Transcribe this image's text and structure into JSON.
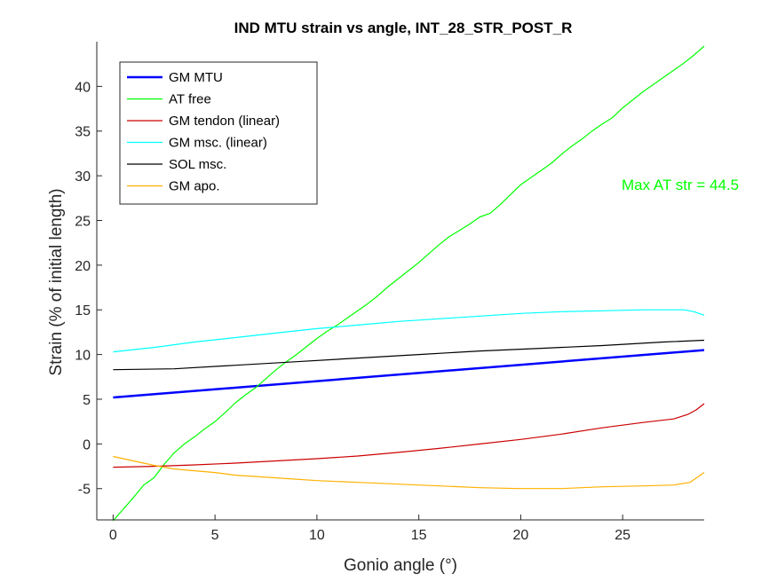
{
  "chart_data": {
    "type": "line",
    "title": "IND MTU strain vs angle, INT_28_STR_POST_R",
    "xlabel": "Gonio angle (°)",
    "ylabel": "Strain (% of initial length)",
    "xlim": [
      -0.8,
      29
    ],
    "ylim": [
      -8.5,
      45
    ],
    "xticks": [
      0,
      5,
      10,
      15,
      20,
      25
    ],
    "yticks": [
      -5,
      0,
      5,
      10,
      15,
      20,
      25,
      30,
      35,
      40
    ],
    "legend_position": "top-left",
    "grid": false,
    "annotation": {
      "text": "Max AT str = 44.5",
      "color": "#00ff00"
    },
    "series": [
      {
        "name": "GM MTU",
        "color": "#0000ff",
        "x": [
          0,
          29
        ],
        "y": [
          5.2,
          10.5
        ]
      },
      {
        "name": "AT free",
        "color": "#00ff00",
        "x": [
          0,
          0.5,
          1,
          1.5,
          2,
          2.5,
          3,
          3.5,
          4,
          4.5,
          5,
          5.5,
          6,
          6.5,
          7,
          7.5,
          8,
          8.5,
          9,
          9.5,
          10,
          10.5,
          11,
          11.5,
          12,
          12.5,
          13,
          13.5,
          14,
          14.5,
          15,
          15.5,
          16,
          16.5,
          17,
          17.5,
          18,
          18.5,
          19,
          19.5,
          20,
          20.5,
          21,
          21.5,
          22,
          22.5,
          23,
          23.5,
          24,
          24.5,
          25,
          25.5,
          26,
          26.5,
          27,
          27.5,
          28,
          28.5,
          29
        ],
        "y": [
          -8.6,
          -7.3,
          -6.0,
          -4.6,
          -3.8,
          -2.3,
          -1.0,
          0.0,
          0.8,
          1.7,
          2.5,
          3.5,
          4.6,
          5.5,
          6.3,
          7.3,
          8.3,
          9.2,
          10.0,
          10.9,
          11.8,
          12.6,
          13.3,
          14.1,
          14.9,
          15.7,
          16.6,
          17.6,
          18.5,
          19.4,
          20.3,
          21.3,
          22.3,
          23.2,
          23.9,
          24.6,
          25.4,
          25.8,
          26.8,
          27.9,
          29.0,
          29.8,
          30.6,
          31.4,
          32.4,
          33.3,
          34.1,
          35.0,
          35.8,
          36.5,
          37.6,
          38.5,
          39.4,
          40.2,
          41.0,
          41.8,
          42.6,
          43.5,
          44.5
        ]
      },
      {
        "name": "GM tendon (linear)",
        "color": "#cc0000",
        "x": [
          0,
          2,
          4,
          6,
          8,
          10,
          12,
          14,
          16,
          18,
          20,
          22,
          24,
          26,
          27.5,
          28.2,
          28.6,
          29
        ],
        "y": [
          -2.6,
          -2.5,
          -2.35,
          -2.15,
          -1.9,
          -1.65,
          -1.35,
          -0.95,
          -0.5,
          0.0,
          0.5,
          1.1,
          1.8,
          2.4,
          2.8,
          3.3,
          3.8,
          4.5
        ]
      },
      {
        "name": "GM msc. (linear)",
        "color": "#00ffff",
        "x": [
          0,
          2,
          4,
          6,
          8,
          10,
          12,
          14,
          16,
          18,
          20,
          22,
          24,
          26,
          27,
          28,
          28.5,
          29
        ],
        "y": [
          10.3,
          10.8,
          11.4,
          11.9,
          12.4,
          12.9,
          13.3,
          13.7,
          14.0,
          14.3,
          14.6,
          14.8,
          14.9,
          15.0,
          15.0,
          15.0,
          14.8,
          14.4
        ]
      },
      {
        "name": "SOL msc.",
        "color": "#000000",
        "x": [
          0,
          3,
          6,
          9,
          12,
          15,
          18,
          21,
          24,
          27,
          29
        ],
        "y": [
          8.3,
          8.4,
          8.8,
          9.2,
          9.6,
          10.0,
          10.4,
          10.7,
          11.0,
          11.4,
          11.6
        ]
      },
      {
        "name": "GM apo.",
        "color": "#ffb000",
        "x": [
          0,
          1,
          2,
          3,
          4,
          5,
          6,
          8,
          10,
          12,
          14,
          16,
          18,
          20,
          22,
          24,
          26,
          27.5,
          28.3,
          29
        ],
        "y": [
          -1.4,
          -1.9,
          -2.4,
          -2.8,
          -3.0,
          -3.2,
          -3.5,
          -3.8,
          -4.1,
          -4.3,
          -4.5,
          -4.7,
          -4.9,
          -5.0,
          -5.0,
          -4.8,
          -4.7,
          -4.6,
          -4.3,
          -3.2
        ]
      }
    ]
  }
}
